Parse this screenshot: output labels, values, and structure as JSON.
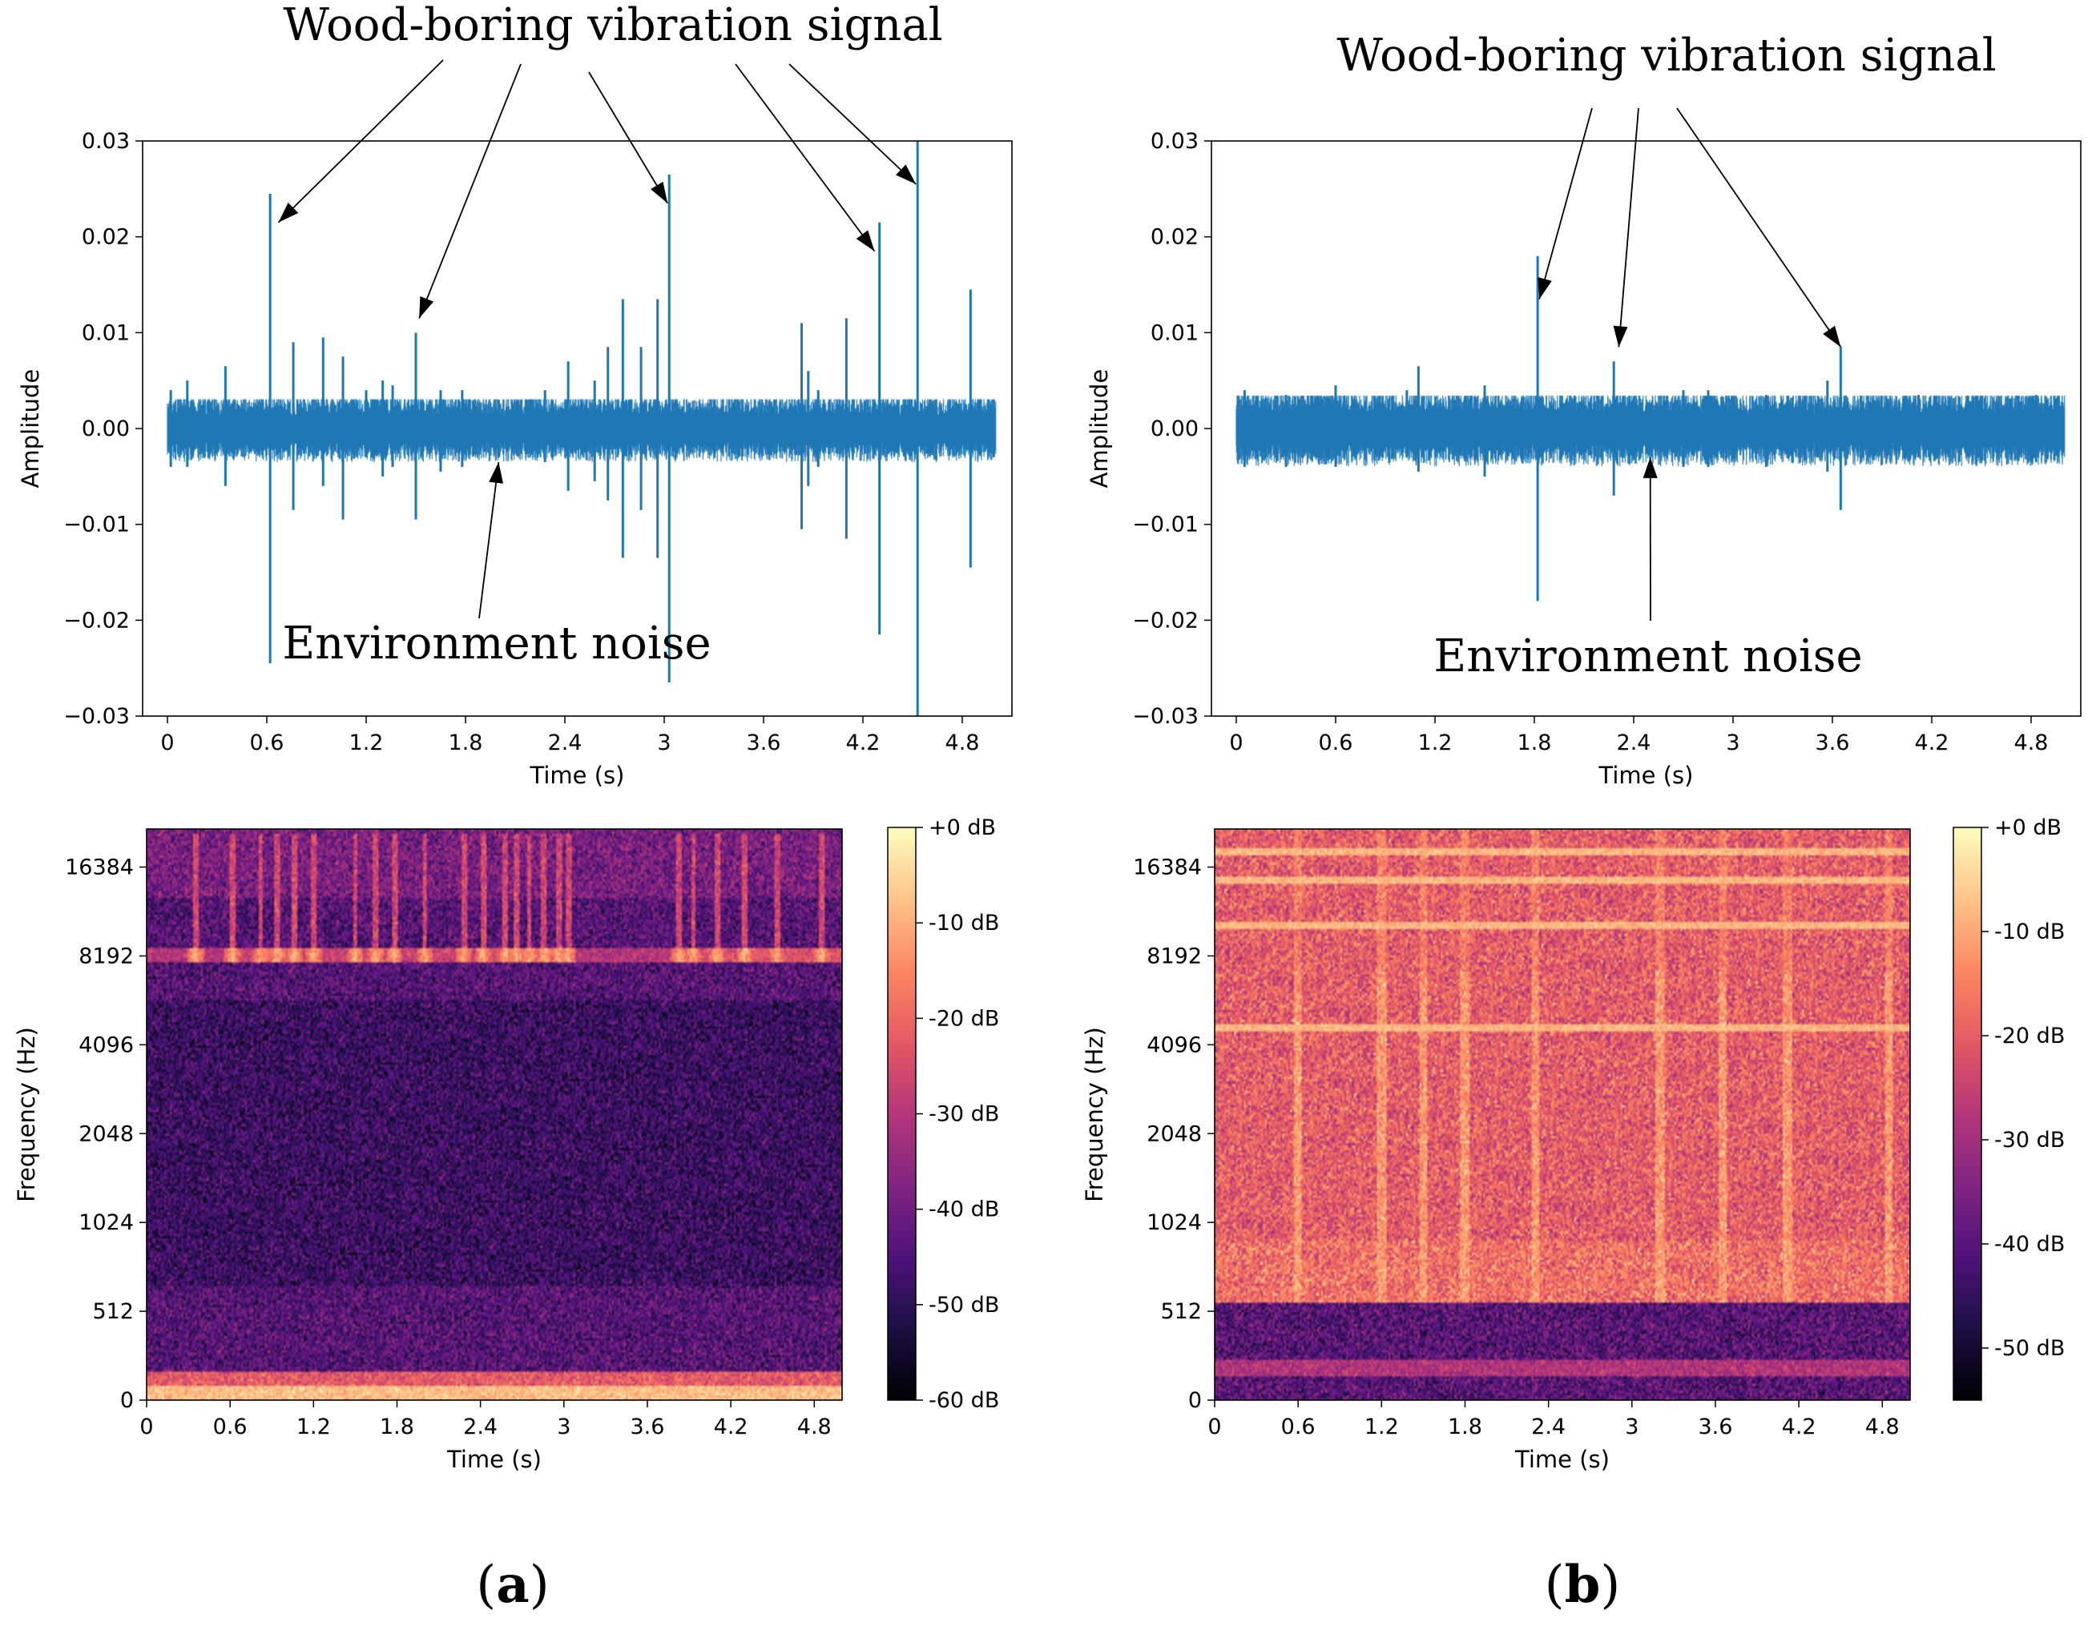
{
  "colors": {
    "waveform": "#1f77b4",
    "magma": [
      "#000004",
      "#1c1044",
      "#4f127b",
      "#812581",
      "#b5367a",
      "#e55964",
      "#fb8761",
      "#fec287",
      "#fcfdbf"
    ]
  },
  "panel_labels": [
    "(a)",
    "(b)"
  ],
  "annotations": {
    "a": {
      "signal": "Wood-boring vibration signal",
      "noise": "Environment noise"
    },
    "b": {
      "signal": "Wood-boring vibration signal",
      "noise": "Environment noise"
    }
  },
  "chart_data": [
    {
      "id": "a-wave",
      "type": "line",
      "title": "",
      "xlabel": "Time (s)",
      "ylabel": "Amplitude",
      "xlim": [
        -0.15,
        5.1
      ],
      "ylim": [
        -0.03,
        0.03
      ],
      "xticks": [
        0,
        0.6,
        1.2,
        1.8,
        2.4,
        3.0,
        3.6,
        4.2,
        4.8
      ],
      "xtick_labels": [
        "0",
        "0.6",
        "1.2",
        "1.8",
        "2.4",
        "3",
        "3.6",
        "4.2",
        "4.8"
      ],
      "yticks": [
        -0.03,
        -0.02,
        -0.01,
        0.0,
        0.01,
        0.02,
        0.03
      ],
      "ytick_labels": [
        "−0.03",
        "−0.02",
        "−0.01",
        "0.00",
        "0.01",
        "0.02",
        "0.03"
      ],
      "duration": 5.0,
      "noise_amplitude": 0.0016,
      "spikes": [
        {
          "t": 0.02,
          "pos": 0.004,
          "neg": -0.004
        },
        {
          "t": 0.12,
          "pos": 0.005,
          "neg": -0.004
        },
        {
          "t": 0.35,
          "pos": 0.0065,
          "neg": -0.006
        },
        {
          "t": 0.62,
          "pos": 0.0245,
          "neg": -0.0245
        },
        {
          "t": 0.76,
          "pos": 0.009,
          "neg": -0.0085
        },
        {
          "t": 0.94,
          "pos": 0.0095,
          "neg": -0.006
        },
        {
          "t": 1.06,
          "pos": 0.0075,
          "neg": -0.0095
        },
        {
          "t": 1.2,
          "pos": 0.004,
          "neg": -0.003
        },
        {
          "t": 1.3,
          "pos": 0.005,
          "neg": -0.005
        },
        {
          "t": 1.36,
          "pos": 0.0045,
          "neg": -0.004
        },
        {
          "t": 1.5,
          "pos": 0.01,
          "neg": -0.0095
        },
        {
          "t": 1.65,
          "pos": 0.004,
          "neg": -0.0045
        },
        {
          "t": 1.78,
          "pos": 0.004,
          "neg": -0.004
        },
        {
          "t": 2.0,
          "pos": 0.003,
          "neg": -0.003
        },
        {
          "t": 2.28,
          "pos": 0.004,
          "neg": -0.0035
        },
        {
          "t": 2.42,
          "pos": 0.007,
          "neg": -0.0065
        },
        {
          "t": 2.58,
          "pos": 0.005,
          "neg": -0.0055
        },
        {
          "t": 2.66,
          "pos": 0.0085,
          "neg": -0.0075
        },
        {
          "t": 2.75,
          "pos": 0.0135,
          "neg": -0.0135
        },
        {
          "t": 2.86,
          "pos": 0.0085,
          "neg": -0.0085
        },
        {
          "t": 2.96,
          "pos": 0.0135,
          "neg": -0.0135
        },
        {
          "t": 3.03,
          "pos": 0.0265,
          "neg": -0.0265
        },
        {
          "t": 3.83,
          "pos": 0.011,
          "neg": -0.0105
        },
        {
          "t": 3.87,
          "pos": 0.006,
          "neg": -0.006
        },
        {
          "t": 3.93,
          "pos": 0.004,
          "neg": -0.004
        },
        {
          "t": 4.1,
          "pos": 0.0115,
          "neg": -0.0115
        },
        {
          "t": 4.3,
          "pos": 0.0215,
          "neg": -0.0215
        },
        {
          "t": 4.53,
          "pos": 0.03,
          "neg": -0.03
        },
        {
          "t": 4.85,
          "pos": 0.0145,
          "neg": -0.0145
        },
        {
          "t": 4.99,
          "pos": 0.003,
          "neg": -0.003
        }
      ],
      "arrow_targets": {
        "signal": [
          [
            0.67,
            0.0215
          ],
          [
            1.52,
            0.0115
          ],
          [
            3.02,
            0.0235
          ],
          [
            4.27,
            0.0185
          ],
          [
            4.52,
            0.0255
          ]
        ],
        "noise": [
          2.0,
          -0.0035
        ]
      }
    },
    {
      "id": "a-spec",
      "type": "heatmap",
      "title": "",
      "xlabel": "Time (s)",
      "ylabel": "Frequency (Hz)",
      "xlim": [
        0,
        5.0
      ],
      "xticks": [
        0,
        0.6,
        1.2,
        1.8,
        2.4,
        3.0,
        3.6,
        4.2,
        4.8
      ],
      "xtick_labels": [
        "0",
        "0.6",
        "1.2",
        "1.8",
        "2.4",
        "3",
        "3.6",
        "4.2",
        "4.8"
      ],
      "yscale": "log2",
      "yticks": [
        0,
        512,
        1024,
        2048,
        4096,
        8192,
        16384
      ],
      "ytick_labels": [
        "0",
        "512",
        "1024",
        "2048",
        "4096",
        "8192",
        "16384"
      ],
      "colorbar": {
        "range_db": [
          -60,
          0
        ],
        "ticks": [
          0,
          -10,
          -20,
          -30,
          -40,
          -50,
          -60
        ],
        "labels": [
          "+0 dB",
          "-10 dB",
          "-20 dB",
          "-30 dB",
          "-40 dB",
          "-50 dB",
          "-60 dB"
        ]
      },
      "background_db": -44,
      "band_8192_db": -22,
      "low_band_db": -8,
      "events_s": [
        0.35,
        0.62,
        0.82,
        0.94,
        1.06,
        1.2,
        1.5,
        1.65,
        1.78,
        2.0,
        2.28,
        2.42,
        2.58,
        2.66,
        2.75,
        2.86,
        2.96,
        3.03,
        3.83,
        3.93,
        4.1,
        4.3,
        4.53,
        4.85
      ]
    },
    {
      "id": "b-wave",
      "type": "line",
      "title": "",
      "xlabel": "Time (s)",
      "ylabel": "Amplitude",
      "xlim": [
        -0.15,
        5.1
      ],
      "ylim": [
        -0.03,
        0.03
      ],
      "xticks": [
        0,
        0.6,
        1.2,
        1.8,
        2.4,
        3.0,
        3.6,
        4.2,
        4.8
      ],
      "xtick_labels": [
        "0",
        "0.6",
        "1.2",
        "1.8",
        "2.4",
        "3",
        "3.6",
        "4.2",
        "4.8"
      ],
      "yticks": [
        -0.03,
        -0.02,
        -0.01,
        0.0,
        0.01,
        0.02,
        0.03
      ],
      "ytick_labels": [
        "−0.03",
        "−0.02",
        "−0.01",
        "0.00",
        "0.01",
        "0.02",
        "0.03"
      ],
      "duration": 5.0,
      "noise_amplitude": 0.0018,
      "spikes": [
        {
          "t": 0.05,
          "pos": 0.004,
          "neg": -0.004
        },
        {
          "t": 0.3,
          "pos": 0.0035,
          "neg": -0.004
        },
        {
          "t": 0.6,
          "pos": 0.0045,
          "neg": -0.004
        },
        {
          "t": 1.03,
          "pos": 0.004,
          "neg": -0.003
        },
        {
          "t": 1.1,
          "pos": 0.0065,
          "neg": -0.0045
        },
        {
          "t": 1.5,
          "pos": 0.0045,
          "neg": -0.005
        },
        {
          "t": 1.82,
          "pos": 0.018,
          "neg": -0.018
        },
        {
          "t": 2.28,
          "pos": 0.007,
          "neg": -0.007
        },
        {
          "t": 2.7,
          "pos": 0.004,
          "neg": -0.004
        },
        {
          "t": 2.85,
          "pos": 0.004,
          "neg": -0.004
        },
        {
          "t": 3.2,
          "pos": 0.0035,
          "neg": -0.004
        },
        {
          "t": 3.57,
          "pos": 0.005,
          "neg": -0.0045
        },
        {
          "t": 3.65,
          "pos": 0.0085,
          "neg": -0.0085
        },
        {
          "t": 4.12,
          "pos": 0.0035,
          "neg": -0.003
        },
        {
          "t": 4.83,
          "pos": 0.0035,
          "neg": -0.0035
        }
      ],
      "arrow_targets": {
        "signal": [
          [
            1.83,
            0.0135
          ],
          [
            2.31,
            0.0085
          ],
          [
            3.65,
            0.0085
          ]
        ],
        "noise": [
          2.5,
          -0.003
        ]
      }
    },
    {
      "id": "b-spec",
      "type": "heatmap",
      "title": "",
      "xlabel": "Time (s)",
      "ylabel": "Frequency (Hz)",
      "xlim": [
        0,
        5.0
      ],
      "xticks": [
        0,
        0.6,
        1.2,
        1.8,
        2.4,
        3.0,
        3.6,
        4.2,
        4.8
      ],
      "xtick_labels": [
        "0",
        "0.6",
        "1.2",
        "1.8",
        "2.4",
        "3",
        "3.6",
        "4.2",
        "4.8"
      ],
      "yscale": "log2",
      "yticks": [
        0,
        512,
        1024,
        2048,
        4096,
        8192,
        16384
      ],
      "ytick_labels": [
        "0",
        "512",
        "1024",
        "2048",
        "4096",
        "8192",
        "16384"
      ],
      "colorbar": {
        "range_db": [
          -55,
          0
        ],
        "ticks": [
          0,
          -10,
          -20,
          -30,
          -40,
          -50
        ],
        "labels": [
          "+0 dB",
          "-10 dB",
          "-20 dB",
          "-30 dB",
          "-40 dB",
          "-50 dB"
        ]
      },
      "background_db": -20,
      "low_region_db": -40,
      "horizontal_lines_hz": [
        4650,
        10400,
        14800,
        18500
      ],
      "events_s": [
        0.6,
        1.2,
        1.5,
        1.8,
        2.31,
        3.2,
        3.65,
        4.12,
        4.85
      ]
    }
  ]
}
